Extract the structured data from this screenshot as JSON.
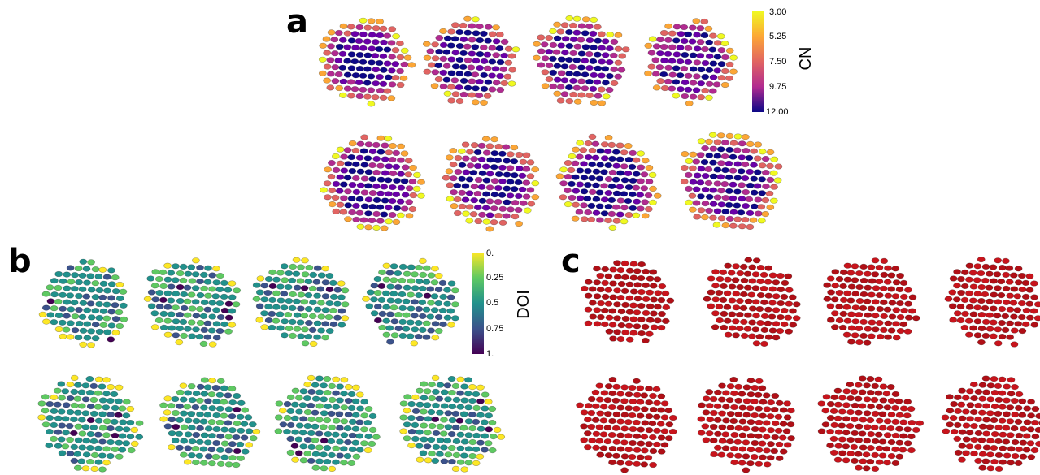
{
  "panels": [
    {
      "label": "a",
      "colorbar": {
        "title": "CN",
        "ticks": [
          "3.00",
          "5.25",
          "7.50",
          "9.75",
          "12.00"
        ]
      }
    },
    {
      "label": "b",
      "colorbar": {
        "title": "DOI",
        "ticks": [
          "0.",
          "0.25",
          "0.5",
          "0.75",
          "1."
        ]
      }
    },
    {
      "label": "c"
    }
  ]
}
